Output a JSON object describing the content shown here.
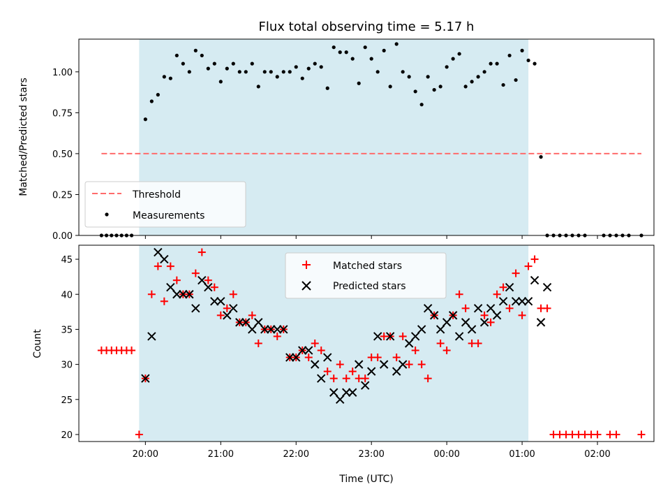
{
  "chart_data": {
    "type": "scatter",
    "title": "Flux total observing time = 5.17 h",
    "xlabel": "Time (UTC)",
    "x_ticks": [
      "20:00",
      "21:00",
      "22:00",
      "23:00",
      "00:00",
      "01:00",
      "02:00"
    ],
    "xlim": [
      "19:07",
      "02:45"
    ],
    "observing_window": {
      "start": "19:55",
      "end": "01:05",
      "color": "#add8e6"
    },
    "top": {
      "ylabel": "Matched/Predicted stars",
      "ylim": [
        0,
        1.2
      ],
      "y_ticks": [
        "0.00",
        "0.25",
        "0.50",
        "0.75",
        "1.00"
      ],
      "threshold": {
        "name": "Threshold",
        "value": 0.5,
        "x_start": "19:25",
        "x_end": "02:35",
        "color": "#ff6b6b"
      },
      "legend": [
        "Threshold",
        "Measurements"
      ],
      "legend_position": "lower-left",
      "series": [
        {
          "name": "Measurements",
          "color": "#000000",
          "points": [
            [
              "19:25",
              0
            ],
            [
              "19:29",
              0
            ],
            [
              "19:33",
              0
            ],
            [
              "19:37",
              0
            ],
            [
              "19:41",
              0
            ],
            [
              "19:45",
              0
            ],
            [
              "19:49",
              0
            ],
            [
              "20:00",
              0.71
            ],
            [
              "20:05",
              0.82
            ],
            [
              "20:10",
              0.86
            ],
            [
              "20:15",
              0.97
            ],
            [
              "20:20",
              0.96
            ],
            [
              "20:25",
              1.1
            ],
            [
              "20:30",
              1.05
            ],
            [
              "20:35",
              1.0
            ],
            [
              "20:40",
              1.13
            ],
            [
              "20:45",
              1.1
            ],
            [
              "20:50",
              1.02
            ],
            [
              "20:55",
              1.05
            ],
            [
              "21:00",
              0.94
            ],
            [
              "21:05",
              1.02
            ],
            [
              "21:10",
              1.05
            ],
            [
              "21:15",
              1.0
            ],
            [
              "21:20",
              1.0
            ],
            [
              "21:25",
              1.05
            ],
            [
              "21:30",
              0.91
            ],
            [
              "21:35",
              1.0
            ],
            [
              "21:40",
              1.0
            ],
            [
              "21:45",
              0.97
            ],
            [
              "21:50",
              1.0
            ],
            [
              "21:55",
              1.0
            ],
            [
              "22:00",
              1.03
            ],
            [
              "22:05",
              0.96
            ],
            [
              "22:10",
              1.02
            ],
            [
              "22:15",
              1.05
            ],
            [
              "22:20",
              1.03
            ],
            [
              "22:25",
              0.9
            ],
            [
              "22:30",
              1.15
            ],
            [
              "22:35",
              1.12
            ],
            [
              "22:40",
              1.12
            ],
            [
              "22:45",
              1.08
            ],
            [
              "22:50",
              0.93
            ],
            [
              "22:55",
              1.15
            ],
            [
              "23:00",
              1.08
            ],
            [
              "23:05",
              1.0
            ],
            [
              "23:10",
              1.13
            ],
            [
              "23:15",
              0.91
            ],
            [
              "23:20",
              1.17
            ],
            [
              "23:25",
              1.0
            ],
            [
              "23:30",
              0.97
            ],
            [
              "23:35",
              0.88
            ],
            [
              "23:40",
              0.8
            ],
            [
              "23:45",
              0.97
            ],
            [
              "23:50",
              0.89
            ],
            [
              "23:55",
              0.91
            ],
            [
              "00:00",
              1.03
            ],
            [
              "00:05",
              1.08
            ],
            [
              "00:10",
              1.11
            ],
            [
              "00:15",
              0.91
            ],
            [
              "00:20",
              0.94
            ],
            [
              "00:25",
              0.97
            ],
            [
              "00:30",
              1.0
            ],
            [
              "00:35",
              1.05
            ],
            [
              "00:40",
              1.05
            ],
            [
              "00:45",
              0.92
            ],
            [
              "00:50",
              1.1
            ],
            [
              "00:55",
              0.95
            ],
            [
              "01:00",
              1.13
            ],
            [
              "01:05",
              1.07
            ],
            [
              "01:10",
              1.05
            ],
            [
              "01:15",
              0.48
            ],
            [
              "01:20",
              0
            ],
            [
              "01:25",
              0
            ],
            [
              "01:30",
              0
            ],
            [
              "01:35",
              0
            ],
            [
              "01:40",
              0
            ],
            [
              "01:45",
              0
            ],
            [
              "01:50",
              0
            ],
            [
              "02:05",
              0
            ],
            [
              "02:10",
              0
            ],
            [
              "02:15",
              0
            ],
            [
              "02:20",
              0
            ],
            [
              "02:25",
              0
            ],
            [
              "02:35",
              0
            ]
          ]
        }
      ]
    },
    "bottom": {
      "ylabel": "Count",
      "ylim": [
        19,
        47
      ],
      "y_ticks": [
        "20",
        "25",
        "30",
        "35",
        "40",
        "45"
      ],
      "legend": [
        "Matched stars",
        "Predicted stars"
      ],
      "legend_position": "upper-center",
      "series": [
        {
          "name": "Matched stars",
          "marker": "plus",
          "color": "#ff0000",
          "points": [
            [
              "19:25",
              32
            ],
            [
              "19:29",
              32
            ],
            [
              "19:33",
              32
            ],
            [
              "19:37",
              32
            ],
            [
              "19:41",
              32
            ],
            [
              "19:45",
              32
            ],
            [
              "19:49",
              32
            ],
            [
              "19:55",
              20
            ],
            [
              "20:00",
              28
            ],
            [
              "20:05",
              40
            ],
            [
              "20:10",
              44
            ],
            [
              "20:15",
              39
            ],
            [
              "20:20",
              44
            ],
            [
              "20:25",
              42
            ],
            [
              "20:30",
              40
            ],
            [
              "20:35",
              40
            ],
            [
              "20:40",
              43
            ],
            [
              "20:45",
              46
            ],
            [
              "20:50",
              42
            ],
            [
              "20:55",
              41
            ],
            [
              "21:00",
              37
            ],
            [
              "21:05",
              38
            ],
            [
              "21:10",
              40
            ],
            [
              "21:15",
              36
            ],
            [
              "21:20",
              36
            ],
            [
              "21:25",
              37
            ],
            [
              "21:30",
              33
            ],
            [
              "21:35",
              35
            ],
            [
              "21:40",
              35
            ],
            [
              "21:45",
              34
            ],
            [
              "21:50",
              35
            ],
            [
              "21:55",
              31
            ],
            [
              "22:00",
              31
            ],
            [
              "22:05",
              32
            ],
            [
              "22:10",
              31
            ],
            [
              "22:15",
              33
            ],
            [
              "22:20",
              32
            ],
            [
              "22:25",
              29
            ],
            [
              "22:30",
              28
            ],
            [
              "22:35",
              30
            ],
            [
              "22:40",
              28
            ],
            [
              "22:45",
              29
            ],
            [
              "22:50",
              28
            ],
            [
              "22:55",
              28
            ],
            [
              "23:00",
              31
            ],
            [
              "23:05",
              31
            ],
            [
              "23:10",
              34
            ],
            [
              "23:15",
              34
            ],
            [
              "23:20",
              31
            ],
            [
              "23:25",
              34
            ],
            [
              "23:30",
              30
            ],
            [
              "23:35",
              32
            ],
            [
              "23:40",
              30
            ],
            [
              "23:45",
              28
            ],
            [
              "23:50",
              37
            ],
            [
              "23:55",
              33
            ],
            [
              "00:00",
              32
            ],
            [
              "00:05",
              37
            ],
            [
              "00:10",
              40
            ],
            [
              "00:15",
              38
            ],
            [
              "00:20",
              33
            ],
            [
              "00:25",
              33
            ],
            [
              "00:30",
              37
            ],
            [
              "00:35",
              36
            ],
            [
              "00:40",
              40
            ],
            [
              "00:45",
              41
            ],
            [
              "00:50",
              38
            ],
            [
              "00:55",
              43
            ],
            [
              "01:00",
              37
            ],
            [
              "01:05",
              44
            ],
            [
              "01:10",
              45
            ],
            [
              "01:15",
              38
            ],
            [
              "01:20",
              38
            ],
            [
              "01:25",
              20
            ],
            [
              "01:30",
              20
            ],
            [
              "01:35",
              20
            ],
            [
              "01:40",
              20
            ],
            [
              "01:45",
              20
            ],
            [
              "01:50",
              20
            ],
            [
              "01:55",
              20
            ],
            [
              "02:00",
              20
            ],
            [
              "02:10",
              20
            ],
            [
              "02:15",
              20
            ],
            [
              "02:35",
              20
            ]
          ]
        },
        {
          "name": "Predicted stars",
          "marker": "x",
          "color": "#000000",
          "points": [
            [
              "20:00",
              28
            ],
            [
              "20:05",
              34
            ],
            [
              "20:10",
              46
            ],
            [
              "20:15",
              45
            ],
            [
              "20:20",
              41
            ],
            [
              "20:25",
              40
            ],
            [
              "20:30",
              40
            ],
            [
              "20:35",
              40
            ],
            [
              "20:40",
              38
            ],
            [
              "20:45",
              42
            ],
            [
              "20:50",
              41
            ],
            [
              "20:55",
              39
            ],
            [
              "21:00",
              39
            ],
            [
              "21:05",
              37
            ],
            [
              "21:10",
              38
            ],
            [
              "21:15",
              36
            ],
            [
              "21:20",
              36
            ],
            [
              "21:25",
              35
            ],
            [
              "21:30",
              36
            ],
            [
              "21:35",
              35
            ],
            [
              "21:40",
              35
            ],
            [
              "21:45",
              35
            ],
            [
              "21:50",
              35
            ],
            [
              "21:55",
              31
            ],
            [
              "22:00",
              31
            ],
            [
              "22:05",
              32
            ],
            [
              "22:10",
              32
            ],
            [
              "22:15",
              30
            ],
            [
              "22:20",
              28
            ],
            [
              "22:25",
              31
            ],
            [
              "22:30",
              26
            ],
            [
              "22:35",
              25
            ],
            [
              "22:40",
              26
            ],
            [
              "22:45",
              26
            ],
            [
              "22:50",
              30
            ],
            [
              "22:55",
              27
            ],
            [
              "23:00",
              29
            ],
            [
              "23:05",
              34
            ],
            [
              "23:10",
              30
            ],
            [
              "23:15",
              34
            ],
            [
              "23:20",
              29
            ],
            [
              "23:25",
              30
            ],
            [
              "23:30",
              33
            ],
            [
              "23:35",
              34
            ],
            [
              "23:40",
              35
            ],
            [
              "23:45",
              38
            ],
            [
              "23:50",
              37
            ],
            [
              "23:55",
              35
            ],
            [
              "00:00",
              36
            ],
            [
              "00:05",
              37
            ],
            [
              "00:10",
              34
            ],
            [
              "00:15",
              36
            ],
            [
              "00:20",
              35
            ],
            [
              "00:25",
              38
            ],
            [
              "00:30",
              36
            ],
            [
              "00:35",
              38
            ],
            [
              "00:40",
              37
            ],
            [
              "00:45",
              39
            ],
            [
              "00:50",
              41
            ],
            [
              "00:55",
              39
            ],
            [
              "01:00",
              39
            ],
            [
              "01:05",
              39
            ],
            [
              "01:10",
              42
            ],
            [
              "01:15",
              36
            ],
            [
              "01:20",
              41
            ]
          ]
        }
      ]
    }
  }
}
